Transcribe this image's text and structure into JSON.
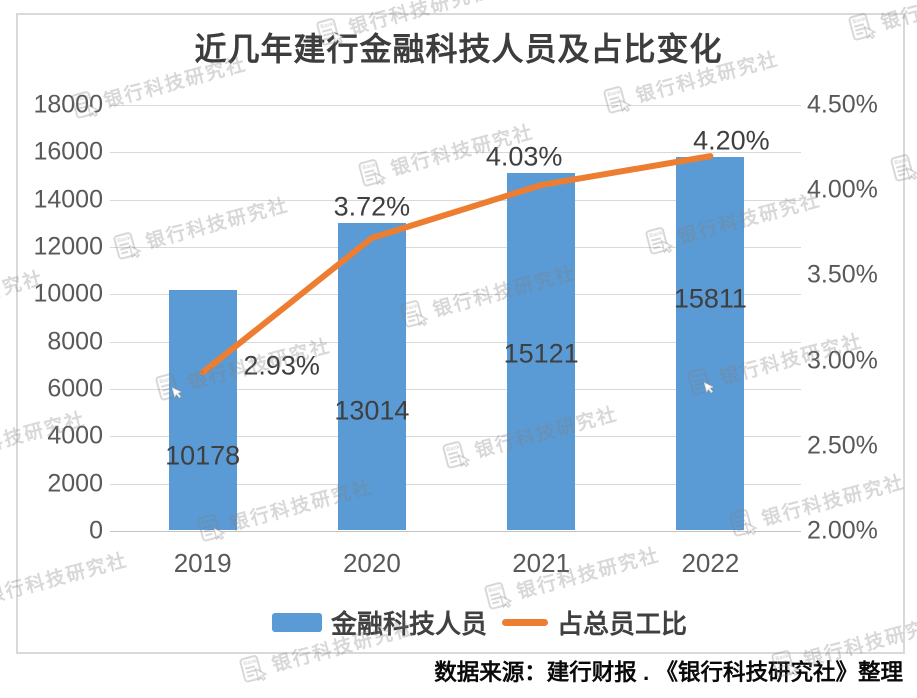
{
  "title": "近几年建行金融科技人员及占比变化",
  "source_note": "数据来源：建行财报 . 《银行科技研究社》整理",
  "watermark": {
    "text": "银行科技研究社",
    "icon": "bank-document-with-hand-cursor",
    "icon_label": "Bank"
  },
  "colors": {
    "bar": "#5B9BD5",
    "line": "#ED7D31",
    "grid": "#D9D9D9",
    "axis_text": "#595959",
    "label_text": "#3F3F3F"
  },
  "legend": [
    {
      "type": "bar",
      "label": "金融科技人员"
    },
    {
      "type": "line",
      "label": "占总员工比"
    }
  ],
  "chart_data": {
    "type": "bar",
    "subtype": "bar+line dual-axis combo",
    "title": "近几年建行金融科技人员及占比变化",
    "categories": [
      "2019",
      "2020",
      "2021",
      "2022"
    ],
    "series": [
      {
        "name": "金融科技人员",
        "type": "bar",
        "axis": "left",
        "values": [
          10178,
          13014,
          15121,
          15811
        ],
        "labels": [
          "10178",
          "13014",
          "15121",
          "15811"
        ]
      },
      {
        "name": "占总员工比",
        "type": "line",
        "axis": "right",
        "values": [
          2.93,
          3.72,
          4.03,
          4.2
        ],
        "labels": [
          "2.93%",
          "3.72%",
          "4.03%",
          "4.20%"
        ]
      }
    ],
    "left_axis": {
      "min": 0,
      "max": 18000,
      "step": 2000,
      "ticks": [
        "0",
        "2000",
        "4000",
        "6000",
        "8000",
        "10000",
        "12000",
        "14000",
        "16000",
        "18000"
      ]
    },
    "right_axis": {
      "min": 2.0,
      "max": 4.5,
      "step": 0.5,
      "ticks": [
        "2.00%",
        "2.50%",
        "3.00%",
        "3.50%",
        "4.00%",
        "4.50%"
      ]
    },
    "grid": true,
    "legend_position": "bottom",
    "xlabel": "",
    "ylabel": ""
  }
}
